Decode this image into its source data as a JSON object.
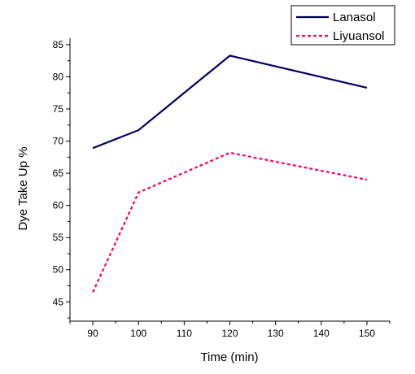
{
  "chart_data": {
    "type": "line",
    "xlabel": "Time (min)",
    "ylabel": "Dye Take Up %",
    "xlim": [
      85,
      155
    ],
    "ylim": [
      42,
      86
    ],
    "x_ticks": [
      90,
      100,
      110,
      120,
      130,
      140,
      150
    ],
    "y_ticks": [
      45,
      50,
      55,
      60,
      65,
      70,
      75,
      80,
      85
    ],
    "grid": false,
    "legend_position": "top-right",
    "series": [
      {
        "name": "Lanasol",
        "color": "#000066",
        "style": "solid",
        "x": [
          90,
          100,
          120,
          150
        ],
        "y": [
          68.9,
          71.7,
          83.3,
          78.3
        ]
      },
      {
        "name": "Liyuansol",
        "color": "#ff0066",
        "style": "dashed",
        "x": [
          90,
          100,
          120,
          150
        ],
        "y": [
          46.5,
          62,
          68.2,
          64
        ]
      }
    ]
  }
}
